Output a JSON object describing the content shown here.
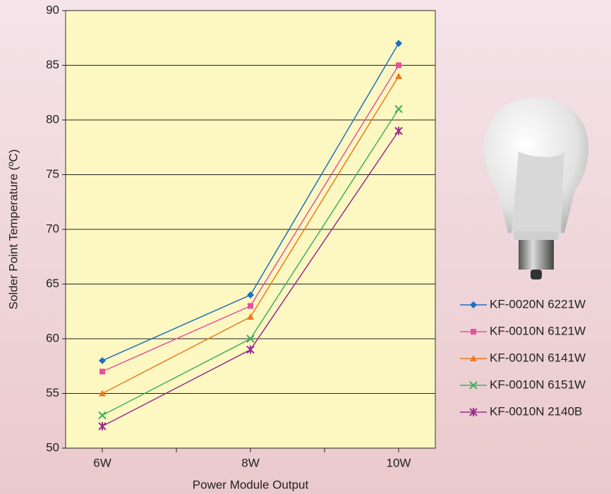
{
  "chart_data": {
    "type": "line",
    "x_label": "Power Module Output",
    "y_label": "Solder Point Temperature (ºC)",
    "categories": [
      "6W",
      "8W",
      "10W"
    ],
    "series": [
      {
        "name": "KF-0020N 6221W",
        "color": "#1f6fc0",
        "marker": "diamond",
        "values": [
          58,
          64,
          87
        ]
      },
      {
        "name": "KF-0010N 6121W",
        "color": "#e9509a",
        "marker": "square",
        "values": [
          57,
          63,
          85
        ]
      },
      {
        "name": "KF-0010N 6141W",
        "color": "#f07820",
        "marker": "triangle",
        "values": [
          55,
          62,
          84
        ]
      },
      {
        "name": "KF-0010N 6151W",
        "color": "#3cb060",
        "marker": "x",
        "values": [
          53,
          60,
          81
        ]
      },
      {
        "name": "KF-0010N 2140B",
        "color": "#9a2a8a",
        "marker": "star",
        "values": [
          52,
          59,
          79
        ]
      }
    ],
    "ylim": [
      50,
      90
    ],
    "yticks": [
      50,
      55,
      60,
      65,
      70,
      75,
      80,
      85,
      90
    ],
    "grid": true,
    "legend": "right"
  }
}
